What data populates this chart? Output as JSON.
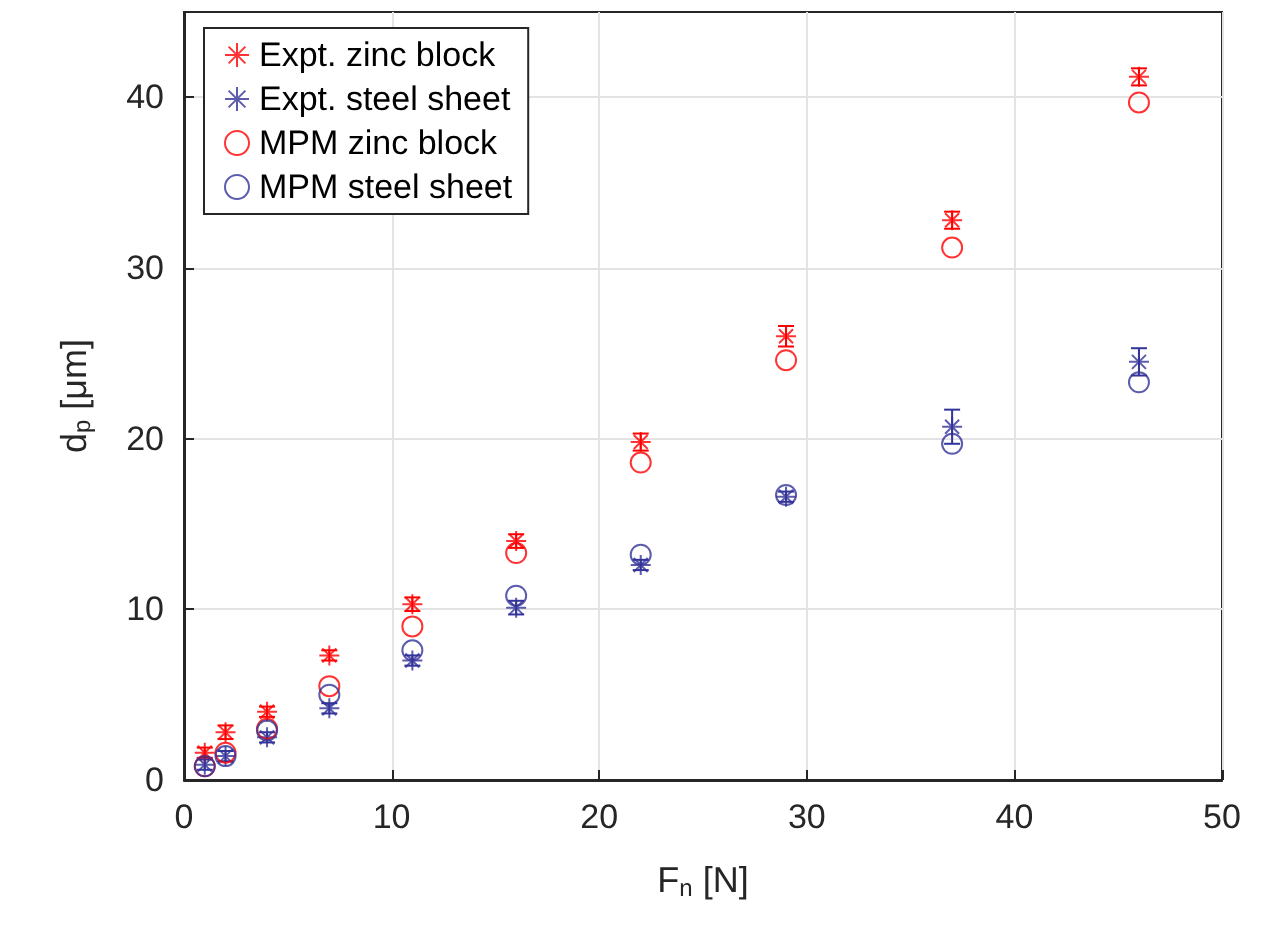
{
  "chart_data": {
    "type": "scatter",
    "xlabel": "F$_{n}$ [N]",
    "ylabel": "d$_{p}$ [μm]",
    "x": [
      1,
      2,
      4,
      7,
      11,
      16,
      22,
      29,
      37,
      46
    ],
    "series": [
      {
        "name": "Expt. zinc block",
        "color": "#ff0000",
        "marker": "cross",
        "values": [
          1.6,
          2.8,
          4.0,
          7.3,
          10.3,
          14.0,
          19.8,
          26.0,
          32.8,
          41.2
        ],
        "errors": [
          0.3,
          0.4,
          0.3,
          0.3,
          0.4,
          0.4,
          0.5,
          0.6,
          0.5,
          0.5
        ]
      },
      {
        "name": "Expt. steel sheet",
        "color": "#333399",
        "marker": "cross",
        "values": [
          0.9,
          1.4,
          2.5,
          4.2,
          7.0,
          10.1,
          12.6,
          16.6,
          20.7,
          24.5
        ],
        "errors": [
          0.3,
          0.3,
          0.3,
          0.3,
          0.3,
          0.4,
          0.3,
          0.3,
          1.0,
          0.8
        ]
      },
      {
        "name": "MPM zinc block",
        "color": "#ff0000",
        "marker": "circle",
        "values": [
          0.8,
          1.6,
          3.0,
          5.5,
          9.0,
          13.3,
          18.6,
          24.6,
          31.2,
          39.7
        ]
      },
      {
        "name": "MPM steel sheet",
        "color": "#333399",
        "marker": "circle",
        "values": [
          0.8,
          1.4,
          2.9,
          5.0,
          7.6,
          10.8,
          13.2,
          16.7,
          19.7,
          23.3
        ]
      }
    ],
    "xlim": [
      0,
      50
    ],
    "xticks": [
      0,
      10,
      20,
      30,
      40,
      50
    ],
    "ylim": [
      0,
      45
    ],
    "yticks": [
      0,
      10,
      20,
      30,
      40
    ],
    "grid": true,
    "legend": "top left"
  }
}
